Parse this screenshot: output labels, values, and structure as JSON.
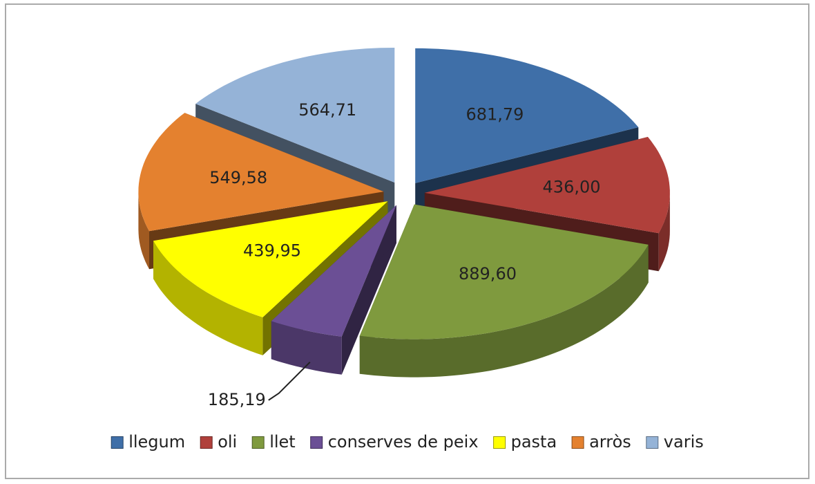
{
  "chart_data": {
    "type": "pie",
    "categories": [
      "llegum",
      "oli",
      "llet",
      "conserves de peix",
      "pasta",
      "arròs",
      "varis"
    ],
    "values": [
      681.79,
      436.0,
      889.6,
      185.19,
      439.95,
      549.58,
      564.71
    ],
    "value_labels": [
      "681,79",
      "436,00",
      "889,60",
      "185,19",
      "439,95",
      "549,58",
      "564,71"
    ],
    "colors": [
      "#3f6fa8",
      "#b0403b",
      "#7f9a3e",
      "#6b4f95",
      "#ffff00",
      "#e4812f",
      "#95b3d7"
    ],
    "legend": "bottom"
  }
}
